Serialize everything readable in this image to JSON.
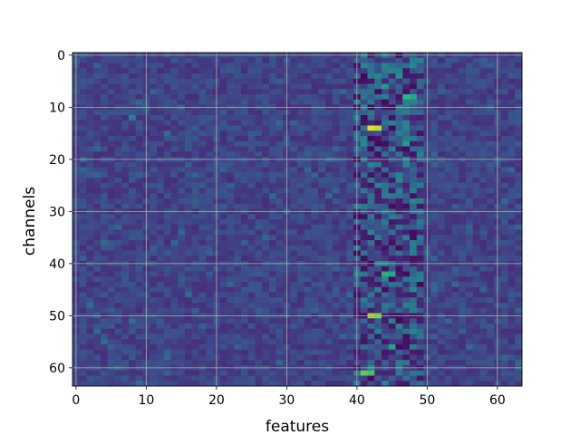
{
  "chart_data": {
    "type": "heatmap",
    "title": "",
    "xlabel": "features",
    "ylabel": "channels",
    "rows": 64,
    "cols": 64,
    "xticks": [
      0,
      10,
      20,
      30,
      40,
      50,
      60
    ],
    "yticks": [
      0,
      10,
      20,
      30,
      40,
      50,
      60
    ],
    "xlim": [
      -0.5,
      63.5
    ],
    "ylim": [
      63.5,
      -0.5
    ],
    "colormap": "viridis",
    "value_range": [
      0,
      1
    ],
    "grid": true,
    "hotspots": [
      {
        "row": 14,
        "col": 42,
        "value": 0.95
      },
      {
        "row": 14,
        "col": 43,
        "value": 0.9
      },
      {
        "row": 50,
        "col": 42,
        "value": 0.85
      },
      {
        "row": 50,
        "col": 43,
        "value": 0.8
      },
      {
        "row": 61,
        "col": 41,
        "value": 0.75
      },
      {
        "row": 61,
        "col": 42,
        "value": 0.7
      },
      {
        "row": 8,
        "col": 47,
        "value": 0.65
      },
      {
        "row": 8,
        "col": 48,
        "value": 0.6
      },
      {
        "row": 42,
        "col": 44,
        "value": 0.62
      },
      {
        "row": 42,
        "col": 45,
        "value": 0.6
      },
      {
        "row": 56,
        "col": 45,
        "value": 0.58
      },
      {
        "row": 6,
        "col": 44,
        "value": 0.55
      },
      {
        "row": 17,
        "col": 47,
        "value": 0.55
      },
      {
        "row": 4,
        "col": 46,
        "value": 0.5
      },
      {
        "row": 12,
        "col": 8,
        "value": 0.45
      }
    ],
    "band_columns": [
      40,
      49
    ]
  }
}
